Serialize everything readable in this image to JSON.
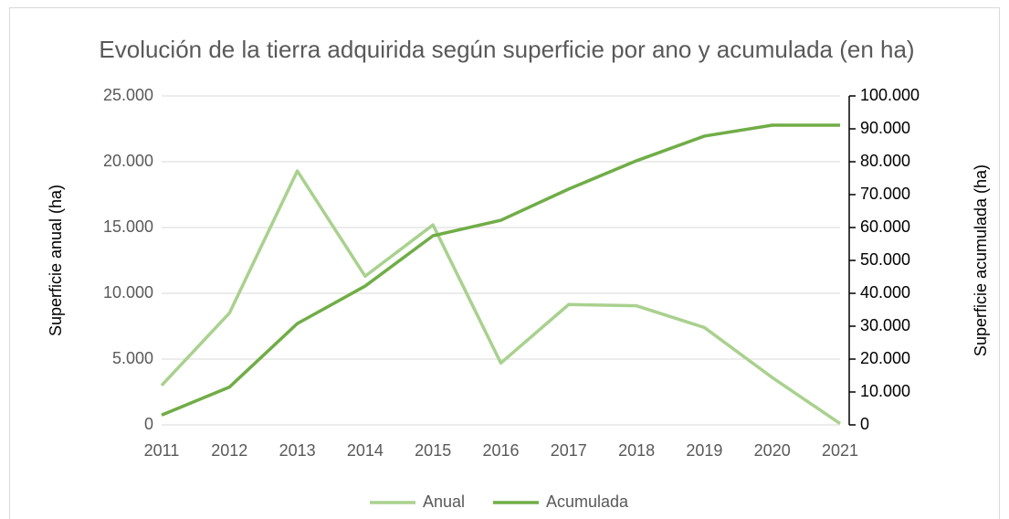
{
  "chart_data": {
    "type": "line",
    "title": "Evolución de la tierra adquirida según superficie por ano y acumulada (en ha)",
    "ylabel": "Superficie anual (ha)",
    "y2label": "Superficie acumulada (ha)",
    "categories": [
      "2011",
      "2012",
      "2013",
      "2014",
      "2015",
      "2016",
      "2017",
      "2018",
      "2019",
      "2020",
      "2021"
    ],
    "series": [
      {
        "name": "Anual",
        "color": "#a9d18e",
        "axis": "y",
        "values": [
          3000,
          8500,
          19300,
          11300,
          15200,
          4700,
          9150,
          9050,
          7400,
          3600,
          100
        ]
      },
      {
        "name": "Acumulada",
        "color": "#70ad47",
        "axis": "y2",
        "values": [
          3000,
          11500,
          30800,
          42200,
          57500,
          62200,
          71700,
          80300,
          87800,
          91100,
          91100
        ]
      }
    ],
    "ylim": [
      0,
      25000
    ],
    "yticks": [
      0,
      {
        "value": 5000,
        "label": "5.000"
      },
      {
        "value": 10000,
        "label": "10.000"
      },
      {
        "value": 15000,
        "label": "15.000"
      },
      {
        "value": 20000,
        "label": "20.000"
      },
      {
        "value": 25000,
        "label": "25.000"
      }
    ],
    "y2lim": [
      0,
      100000
    ],
    "y2ticks": [
      0,
      {
        "value": 10000,
        "label": "10.000"
      },
      {
        "value": 20000,
        "label": "20.000"
      },
      {
        "value": 30000,
        "label": "30.000"
      },
      {
        "value": 40000,
        "label": "40.000"
      },
      {
        "value": 50000,
        "label": "50.000"
      },
      {
        "value": 60000,
        "label": "60.000"
      },
      {
        "value": 70000,
        "label": "70.000"
      },
      {
        "value": 80000,
        "label": "80.000"
      },
      {
        "value": 90000,
        "label": "90.000"
      },
      {
        "value": 100000,
        "label": "100.000"
      }
    ],
    "grid": true,
    "legend": "bottom"
  }
}
